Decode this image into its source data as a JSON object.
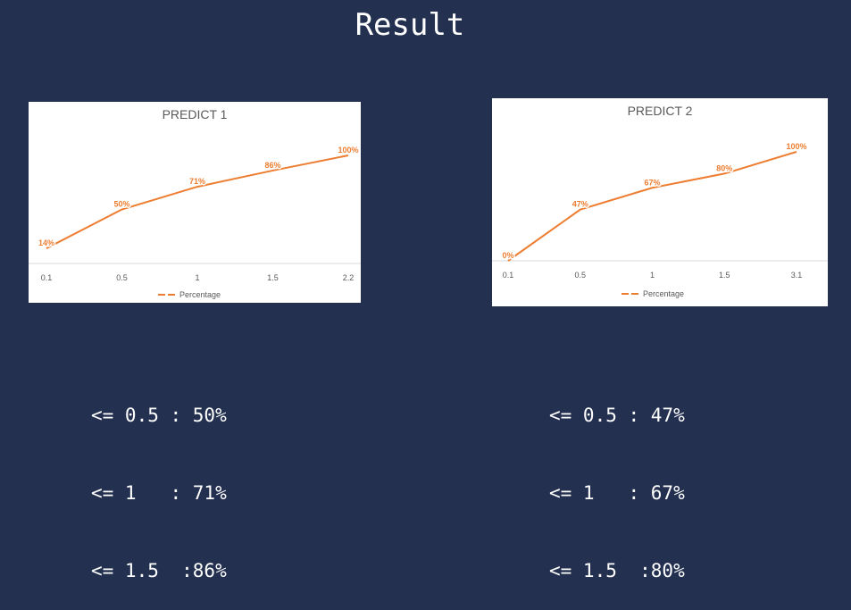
{
  "page": {
    "title": "Result"
  },
  "chart_data": [
    {
      "type": "line",
      "title": "PREDICT 1",
      "categories": [
        "0.1",
        "0.5",
        "1",
        "1.5",
        "2.2"
      ],
      "series": [
        {
          "name": "Percentage",
          "values": [
            14,
            50,
            71,
            86,
            100
          ],
          "labels": [
            "14%",
            "50%",
            "71%",
            "86%",
            "100%"
          ],
          "color": "#ED7D31"
        }
      ],
      "ylim": [
        0,
        100
      ],
      "grid": false,
      "legend": "bottom"
    },
    {
      "type": "line",
      "title": "PREDICT 2",
      "categories": [
        "0.1",
        "0.5",
        "1",
        "1.5",
        "3.1"
      ],
      "series": [
        {
          "name": "Percentage",
          "values": [
            0,
            47,
            67,
            80,
            100
          ],
          "labels": [
            "0%",
            "47%",
            "67%",
            "80%",
            "100%"
          ],
          "color": "#ED7D31"
        }
      ],
      "ylim": [
        0,
        100
      ],
      "grid": false,
      "legend": "bottom"
    }
  ],
  "summaries": [
    {
      "lines": [
        "<= 0.5 : 50%",
        "<= 1   : 71%",
        "<= 1.5  :86%"
      ]
    },
    {
      "lines": [
        "<= 0.5 : 47%",
        "<= 1   : 67%",
        "<= 1.5  :80%"
      ]
    }
  ]
}
